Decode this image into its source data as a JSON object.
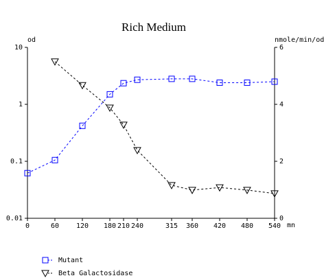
{
  "chart_data": {
    "type": "line",
    "title": "Rich Medium",
    "y_label": "od",
    "y2_label": "nmole/min/od",
    "x_label": "mn",
    "x": [
      0,
      60,
      120,
      180,
      210,
      240,
      315,
      360,
      420,
      480,
      540
    ],
    "xlim": [
      0,
      540
    ],
    "xticks": [
      0,
      60,
      120,
      180,
      210,
      240,
      315,
      360,
      420,
      480,
      540
    ],
    "ylim": [
      0.01,
      10
    ],
    "yticks": [
      0.01,
      0.1,
      1,
      10
    ],
    "ylog": true,
    "y2lim": [
      0,
      6
    ],
    "y2ticks": [
      0,
      2,
      4,
      6
    ],
    "series": [
      {
        "name": "Mutant",
        "color": "#0000ff",
        "marker": "square",
        "values": [
          0.062,
          0.105,
          0.42,
          1.5,
          2.35,
          2.7,
          2.8,
          2.8,
          2.4,
          2.4,
          2.5
        ]
      },
      {
        "name": "Beta Galactosidase",
        "color": "#000000",
        "marker": "triangle-down",
        "axis": "y2",
        "values": [
          null,
          5.5,
          4.67,
          3.88,
          3.28,
          2.39,
          1.16,
          0.99,
          1.08,
          0.99,
          0.87
        ]
      }
    ]
  }
}
